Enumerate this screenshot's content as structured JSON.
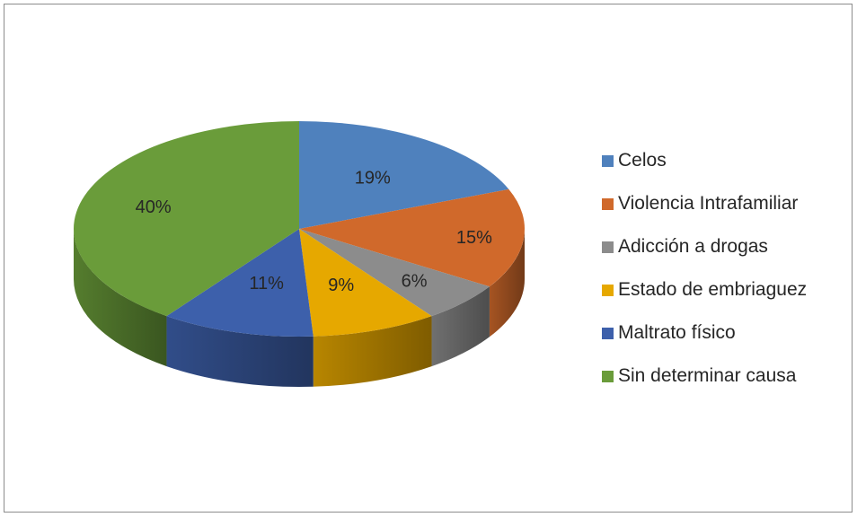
{
  "chart_data": {
    "type": "pie",
    "style": "3d",
    "categories": [
      "Celos",
      "Violencia Intrafamiliar",
      "Adicción a drogas",
      "Estado de embriaguez",
      "Maltrato físico",
      "Sin determinar causa"
    ],
    "values": [
      19,
      15,
      6,
      9,
      11,
      40
    ],
    "labels": [
      "19%",
      "15%",
      "6%",
      "9%",
      "11%",
      "40%"
    ],
    "colors": [
      "#4f81bd",
      "#d0692b",
      "#8c8c8c",
      "#e6a800",
      "#3d60ab",
      "#6a9c3a"
    ],
    "legend_position": "right",
    "title": ""
  }
}
